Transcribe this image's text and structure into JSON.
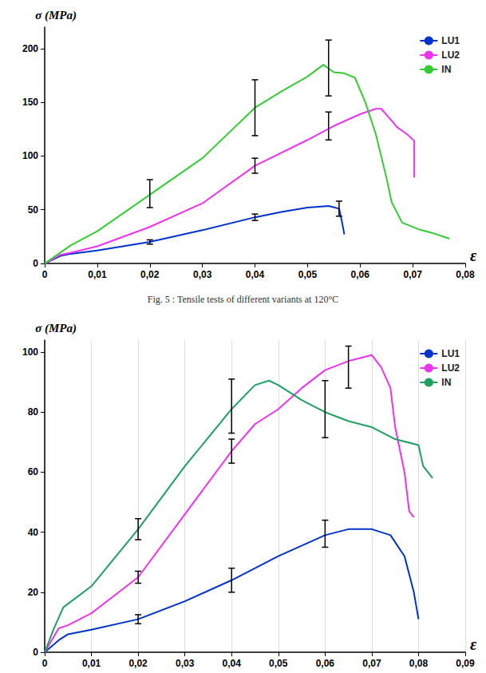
{
  "chart_data": [
    {
      "type": "line",
      "title": "Fig. 5 : Tensile tests of different variants at 120°C",
      "x_label": "ε",
      "y_label": "σ (MPa)",
      "xlim": [
        0,
        0.08
      ],
      "xticks": [
        0,
        {
          "value": 0.01,
          "label": "0,01"
        },
        {
          "value": 0.02,
          "label": "0,02"
        },
        {
          "value": 0.03,
          "label": "0,03"
        },
        {
          "value": 0.04,
          "label": "0,04"
        },
        {
          "value": 0.05,
          "label": "0,05"
        },
        {
          "value": 0.06,
          "label": "0,06"
        },
        {
          "value": 0.07,
          "label": "0,07"
        },
        {
          "value": 0.08,
          "label": "0,08"
        }
      ],
      "ylim": [
        0,
        220
      ],
      "yticks": [
        0,
        50,
        100,
        150,
        200
      ],
      "grid": false,
      "legend": "upper right",
      "series": [
        {
          "name": "LU1",
          "color": "#0033cc",
          "x": [
            0,
            0.003,
            0.005,
            0.01,
            0.02,
            0.03,
            0.04,
            0.045,
            0.05,
            0.054,
            0.056,
            0.0565,
            0.057
          ],
          "values": [
            0,
            7,
            9,
            12,
            20,
            31,
            43,
            48,
            52,
            53.5,
            51,
            40,
            27
          ],
          "error_bars": {
            "x": [
              0.02,
              0.04,
              0.056
            ],
            "y": [
              20,
              43,
              51
            ],
            "err": [
              2,
              3,
              7
            ]
          }
        },
        {
          "name": "LU2",
          "color": "#ee33ee",
          "x": [
            0,
            0.003,
            0.005,
            0.01,
            0.02,
            0.03,
            0.04,
            0.05,
            0.055,
            0.06,
            0.063,
            0.064,
            0.066,
            0.067,
            0.069,
            0.0703,
            0.0703
          ],
          "values": [
            0,
            8,
            10,
            16,
            34,
            56,
            91,
            115,
            128,
            139,
            144,
            144,
            133,
            127,
            120,
            114,
            80
          ],
          "error_bars": {
            "x": [
              0.04,
              0.054
            ],
            "y": [
              91,
              128
            ],
            "err": [
              7,
              13
            ]
          }
        },
        {
          "name": "IN",
          "color": "#33cc33",
          "x": [
            0,
            0.005,
            0.01,
            0.02,
            0.03,
            0.04,
            0.045,
            0.05,
            0.053,
            0.055,
            0.057,
            0.059,
            0.061,
            0.063,
            0.065,
            0.066,
            0.068,
            0.071,
            0.074,
            0.077
          ],
          "values": [
            0,
            17,
            30,
            64,
            98,
            145,
            160,
            174,
            185,
            178,
            177,
            173,
            150,
            120,
            80,
            57,
            38,
            32,
            28,
            23
          ],
          "error_bars": {
            "x": [
              0.02,
              0.04,
              0.054
            ],
            "y": [
              65,
              145,
              182
            ],
            "err": [
              13,
              26,
              26
            ]
          }
        }
      ]
    },
    {
      "type": "line",
      "x_label": "ε",
      "y_label": "σ (MPa)",
      "xlim": [
        0,
        0.09
      ],
      "xticks": [
        0,
        {
          "value": 0.01,
          "label": "0,01"
        },
        {
          "value": 0.02,
          "label": "0,02"
        },
        {
          "value": 0.03,
          "label": "0,03"
        },
        {
          "value": 0.04,
          "label": "0,04"
        },
        {
          "value": 0.05,
          "label": "0,05"
        },
        {
          "value": 0.06,
          "label": "0,06"
        },
        {
          "value": 0.07,
          "label": "0,07"
        },
        {
          "value": 0.08,
          "label": "0,08"
        },
        {
          "value": 0.09,
          "label": "0,09"
        }
      ],
      "ylim": [
        0,
        104
      ],
      "yticks": [
        0,
        20,
        40,
        60,
        80,
        100
      ],
      "grid": true,
      "legend": "upper right",
      "series": [
        {
          "name": "LU1",
          "color": "#0033cc",
          "x": [
            0,
            0.003,
            0.005,
            0.01,
            0.02,
            0.03,
            0.04,
            0.05,
            0.06,
            0.065,
            0.07,
            0.074,
            0.077,
            0.079,
            0.08
          ],
          "values": [
            0,
            4,
            6,
            7.5,
            11,
            17,
            24,
            32,
            39,
            41,
            41,
            39,
            32,
            20,
            11
          ],
          "error_bars": {
            "x": [
              0.02,
              0.04,
              0.06
            ],
            "y": [
              11,
              24,
              39.5
            ],
            "err": [
              1.5,
              4,
              4.5
            ]
          }
        },
        {
          "name": "LU2",
          "color": "#ee33ee",
          "x": [
            0,
            0.003,
            0.005,
            0.01,
            0.02,
            0.03,
            0.04,
            0.045,
            0.05,
            0.055,
            0.06,
            0.065,
            0.07,
            0.072,
            0.074,
            0.075,
            0.077,
            0.078,
            0.079
          ],
          "values": [
            0,
            8,
            9,
            13,
            25,
            46,
            67,
            76,
            81,
            88,
            94,
            97,
            99,
            95,
            88,
            75,
            60,
            47,
            45
          ],
          "error_bars": {
            "x": [
              0.02,
              0.04,
              0.065
            ],
            "y": [
              25,
              67,
              95
            ],
            "err": [
              2,
              4,
              7
            ]
          }
        },
        {
          "name": "IN",
          "color": "#1fa060",
          "x": [
            0,
            0.002,
            0.004,
            0.01,
            0.02,
            0.03,
            0.04,
            0.045,
            0.048,
            0.05,
            0.055,
            0.06,
            0.065,
            0.07,
            0.075,
            0.08,
            0.081,
            0.083
          ],
          "values": [
            0,
            8,
            15,
            22,
            41,
            62,
            81,
            89,
            90.5,
            89,
            84,
            80,
            77,
            75,
            71,
            69,
            62,
            58
          ],
          "error_bars": {
            "x": [
              0.02,
              0.04,
              0.06
            ],
            "y": [
              41,
              82,
              81
            ],
            "err": [
              3.5,
              9,
              9.5
            ]
          }
        }
      ]
    }
  ]
}
